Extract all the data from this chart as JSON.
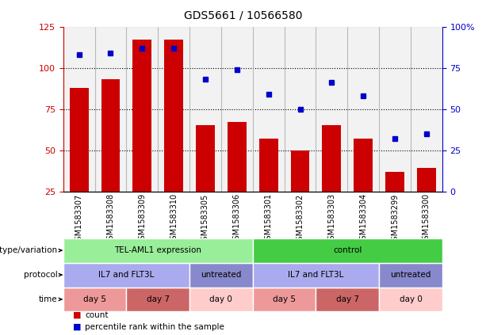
{
  "title": "GDS5661 / 10566580",
  "samples": [
    "GSM1583307",
    "GSM1583308",
    "GSM1583309",
    "GSM1583310",
    "GSM1583305",
    "GSM1583306",
    "GSM1583301",
    "GSM1583302",
    "GSM1583303",
    "GSM1583304",
    "GSM1583299",
    "GSM1583300"
  ],
  "bar_heights": [
    88,
    93,
    117,
    117,
    65,
    67,
    57,
    50,
    65,
    57,
    37,
    39
  ],
  "blue_values": [
    83,
    84,
    87,
    87,
    68,
    74,
    59,
    50,
    66,
    58,
    32,
    35
  ],
  "ylim_left": [
    25,
    125
  ],
  "ylim_right": [
    0,
    100
  ],
  "left_ticks": [
    25,
    50,
    75,
    100,
    125
  ],
  "right_ticks": [
    0,
    25,
    50,
    75,
    100
  ],
  "right_tick_labels": [
    "0",
    "25",
    "50",
    "75",
    "100%"
  ],
  "bar_color": "#cc0000",
  "blue_color": "#0000cc",
  "bg_color": "#ffffff",
  "left_tick_color": "#cc0000",
  "right_tick_color": "#0000cc",
  "annotation_rows": [
    {
      "label": "genotype/variation",
      "groups": [
        {
          "text": "TEL-AML1 expression",
          "span": 6,
          "color": "#99ee99"
        },
        {
          "text": "control",
          "span": 6,
          "color": "#44cc44"
        }
      ]
    },
    {
      "label": "protocol",
      "groups": [
        {
          "text": "IL7 and FLT3L",
          "span": 4,
          "color": "#aaaaee"
        },
        {
          "text": "untreated",
          "span": 2,
          "color": "#8888cc"
        },
        {
          "text": "IL7 and FLT3L",
          "span": 4,
          "color": "#aaaaee"
        },
        {
          "text": "untreated",
          "span": 2,
          "color": "#8888cc"
        }
      ]
    },
    {
      "label": "time",
      "groups": [
        {
          "text": "day 5",
          "span": 2,
          "color": "#ee9999"
        },
        {
          "text": "day 7",
          "span": 2,
          "color": "#cc6666"
        },
        {
          "text": "day 0",
          "span": 2,
          "color": "#ffcccc"
        },
        {
          "text": "day 5",
          "span": 2,
          "color": "#ee9999"
        },
        {
          "text": "day 7",
          "span": 2,
          "color": "#cc6666"
        },
        {
          "text": "day 0",
          "span": 2,
          "color": "#ffcccc"
        }
      ]
    }
  ],
  "legend_items": [
    {
      "label": "count",
      "color": "#cc0000"
    },
    {
      "label": "percentile rank within the sample",
      "color": "#0000cc"
    }
  ]
}
